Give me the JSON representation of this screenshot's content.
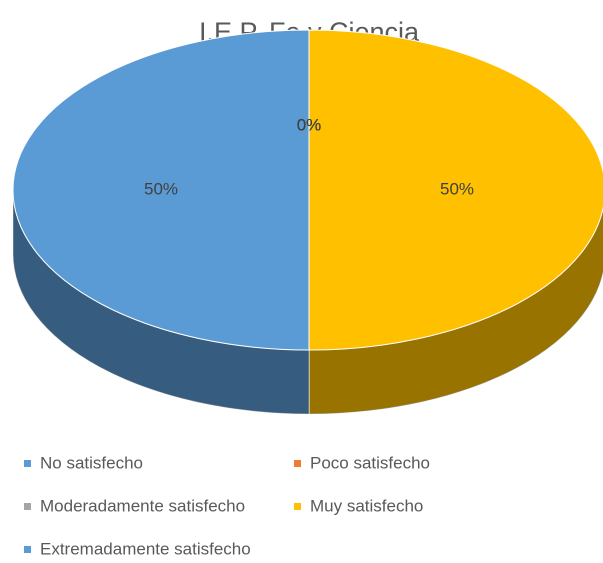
{
  "chart_data": {
    "type": "pie",
    "title": "I.E.P. Fe y Ciencia",
    "categories": [
      "No satisfecho",
      "Poco satisfecho",
      "Moderadamente satisfecho",
      "Muy satisfecho",
      "Extremadamente satisfecho"
    ],
    "values": [
      0,
      0,
      0,
      50,
      50
    ],
    "value_labels": [
      "0%",
      "0%",
      "0%",
      "50%",
      "50%"
    ],
    "colors": [
      "#5b9bd5",
      "#ed7d31",
      "#a5a5a5",
      "#ffc000",
      "#5b9bd5"
    ],
    "legend": "bottom"
  }
}
